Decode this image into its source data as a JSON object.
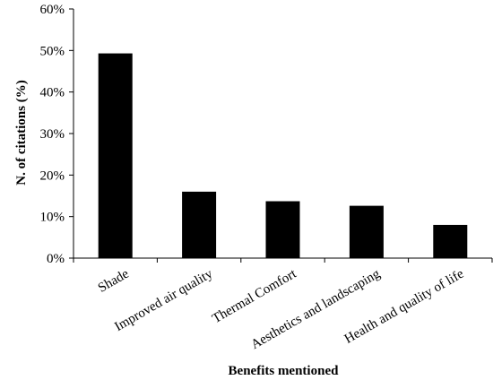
{
  "chart_data": {
    "type": "bar",
    "categories": [
      "Shade",
      "Improved air quality",
      "Thermal Comfort",
      "Aesthetics and landscaping",
      "Health and quality of life"
    ],
    "values": [
      49.3,
      16.0,
      13.7,
      12.6,
      8.0
    ],
    "unit": "%",
    "xlabel": "Benefits mentioned",
    "ylabel": "N. of citations (%)",
    "ylim": [
      0,
      60
    ],
    "yticks": [
      0,
      10,
      20,
      30,
      40,
      50,
      60
    ],
    "ytick_labels": [
      "0%",
      "10%",
      "20%",
      "30%",
      "40%",
      "50%",
      "60%"
    ],
    "grid": false,
    "legend": "none",
    "bar_color": "#000000"
  }
}
